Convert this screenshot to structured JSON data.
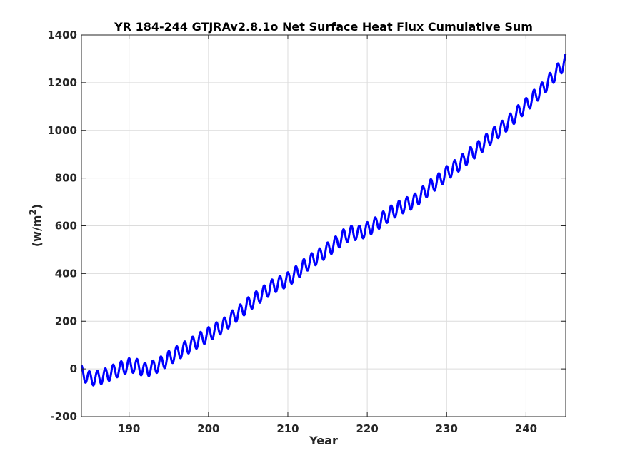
{
  "chart_data": {
    "type": "line",
    "title": "YR 184-244 GTJRAv2.8.1o Net Surface Heat Flux  Cumulative Sum",
    "xlabel": "Year",
    "ylabel_base": "(w/m",
    "ylabel_sup": "2",
    "ylabel_end": ")",
    "xlim": [
      184,
      245
    ],
    "ylim": [
      -200,
      1400
    ],
    "xticks": [
      190,
      200,
      210,
      220,
      230,
      240
    ],
    "yticks": [
      -200,
      0,
      200,
      400,
      600,
      800,
      1000,
      1200,
      1400
    ],
    "grid": true,
    "line_color": "#0000ff",
    "seasonal_amplitude": 30,
    "series": [
      {
        "x": [
          184.0,
          185.0,
          186.0,
          187.0,
          188.0,
          189.0,
          190.0,
          191.0,
          192.0,
          193.0,
          194.0,
          195.0,
          196.0,
          197.0,
          198.0,
          199.0,
          200.0,
          201.0,
          202.0,
          203.0,
          204.0,
          205.0,
          206.0,
          207.0,
          208.0,
          209.0,
          210.0,
          211.0,
          212.0,
          213.0,
          214.0,
          215.0,
          216.0,
          217.0,
          218.0,
          219.0,
          220.0,
          221.0,
          222.0,
          223.0,
          224.0,
          225.0,
          226.0,
          227.0,
          228.0,
          229.0,
          230.0,
          231.0,
          232.0,
          233.0,
          234.0,
          235.0,
          236.0,
          237.0,
          238.0,
          239.0,
          240.0,
          241.0,
          242.0,
          243.0,
          244.0,
          245.0
        ],
        "y": [
          -15,
          -40,
          -38,
          -28,
          -12,
          2,
          15,
          12,
          -5,
          5,
          22,
          45,
          65,
          85,
          105,
          125,
          145,
          165,
          185,
          215,
          240,
          270,
          295,
          320,
          345,
          360,
          375,
          400,
          430,
          455,
          475,
          500,
          525,
          555,
          570,
          570,
          585,
          605,
          630,
          655,
          675,
          690,
          705,
          735,
          765,
          790,
          820,
          845,
          870,
          900,
          925,
          955,
          985,
          1010,
          1040,
          1075,
          1105,
          1140,
          1170,
          1210,
          1250,
          1290
        ]
      }
    ]
  }
}
